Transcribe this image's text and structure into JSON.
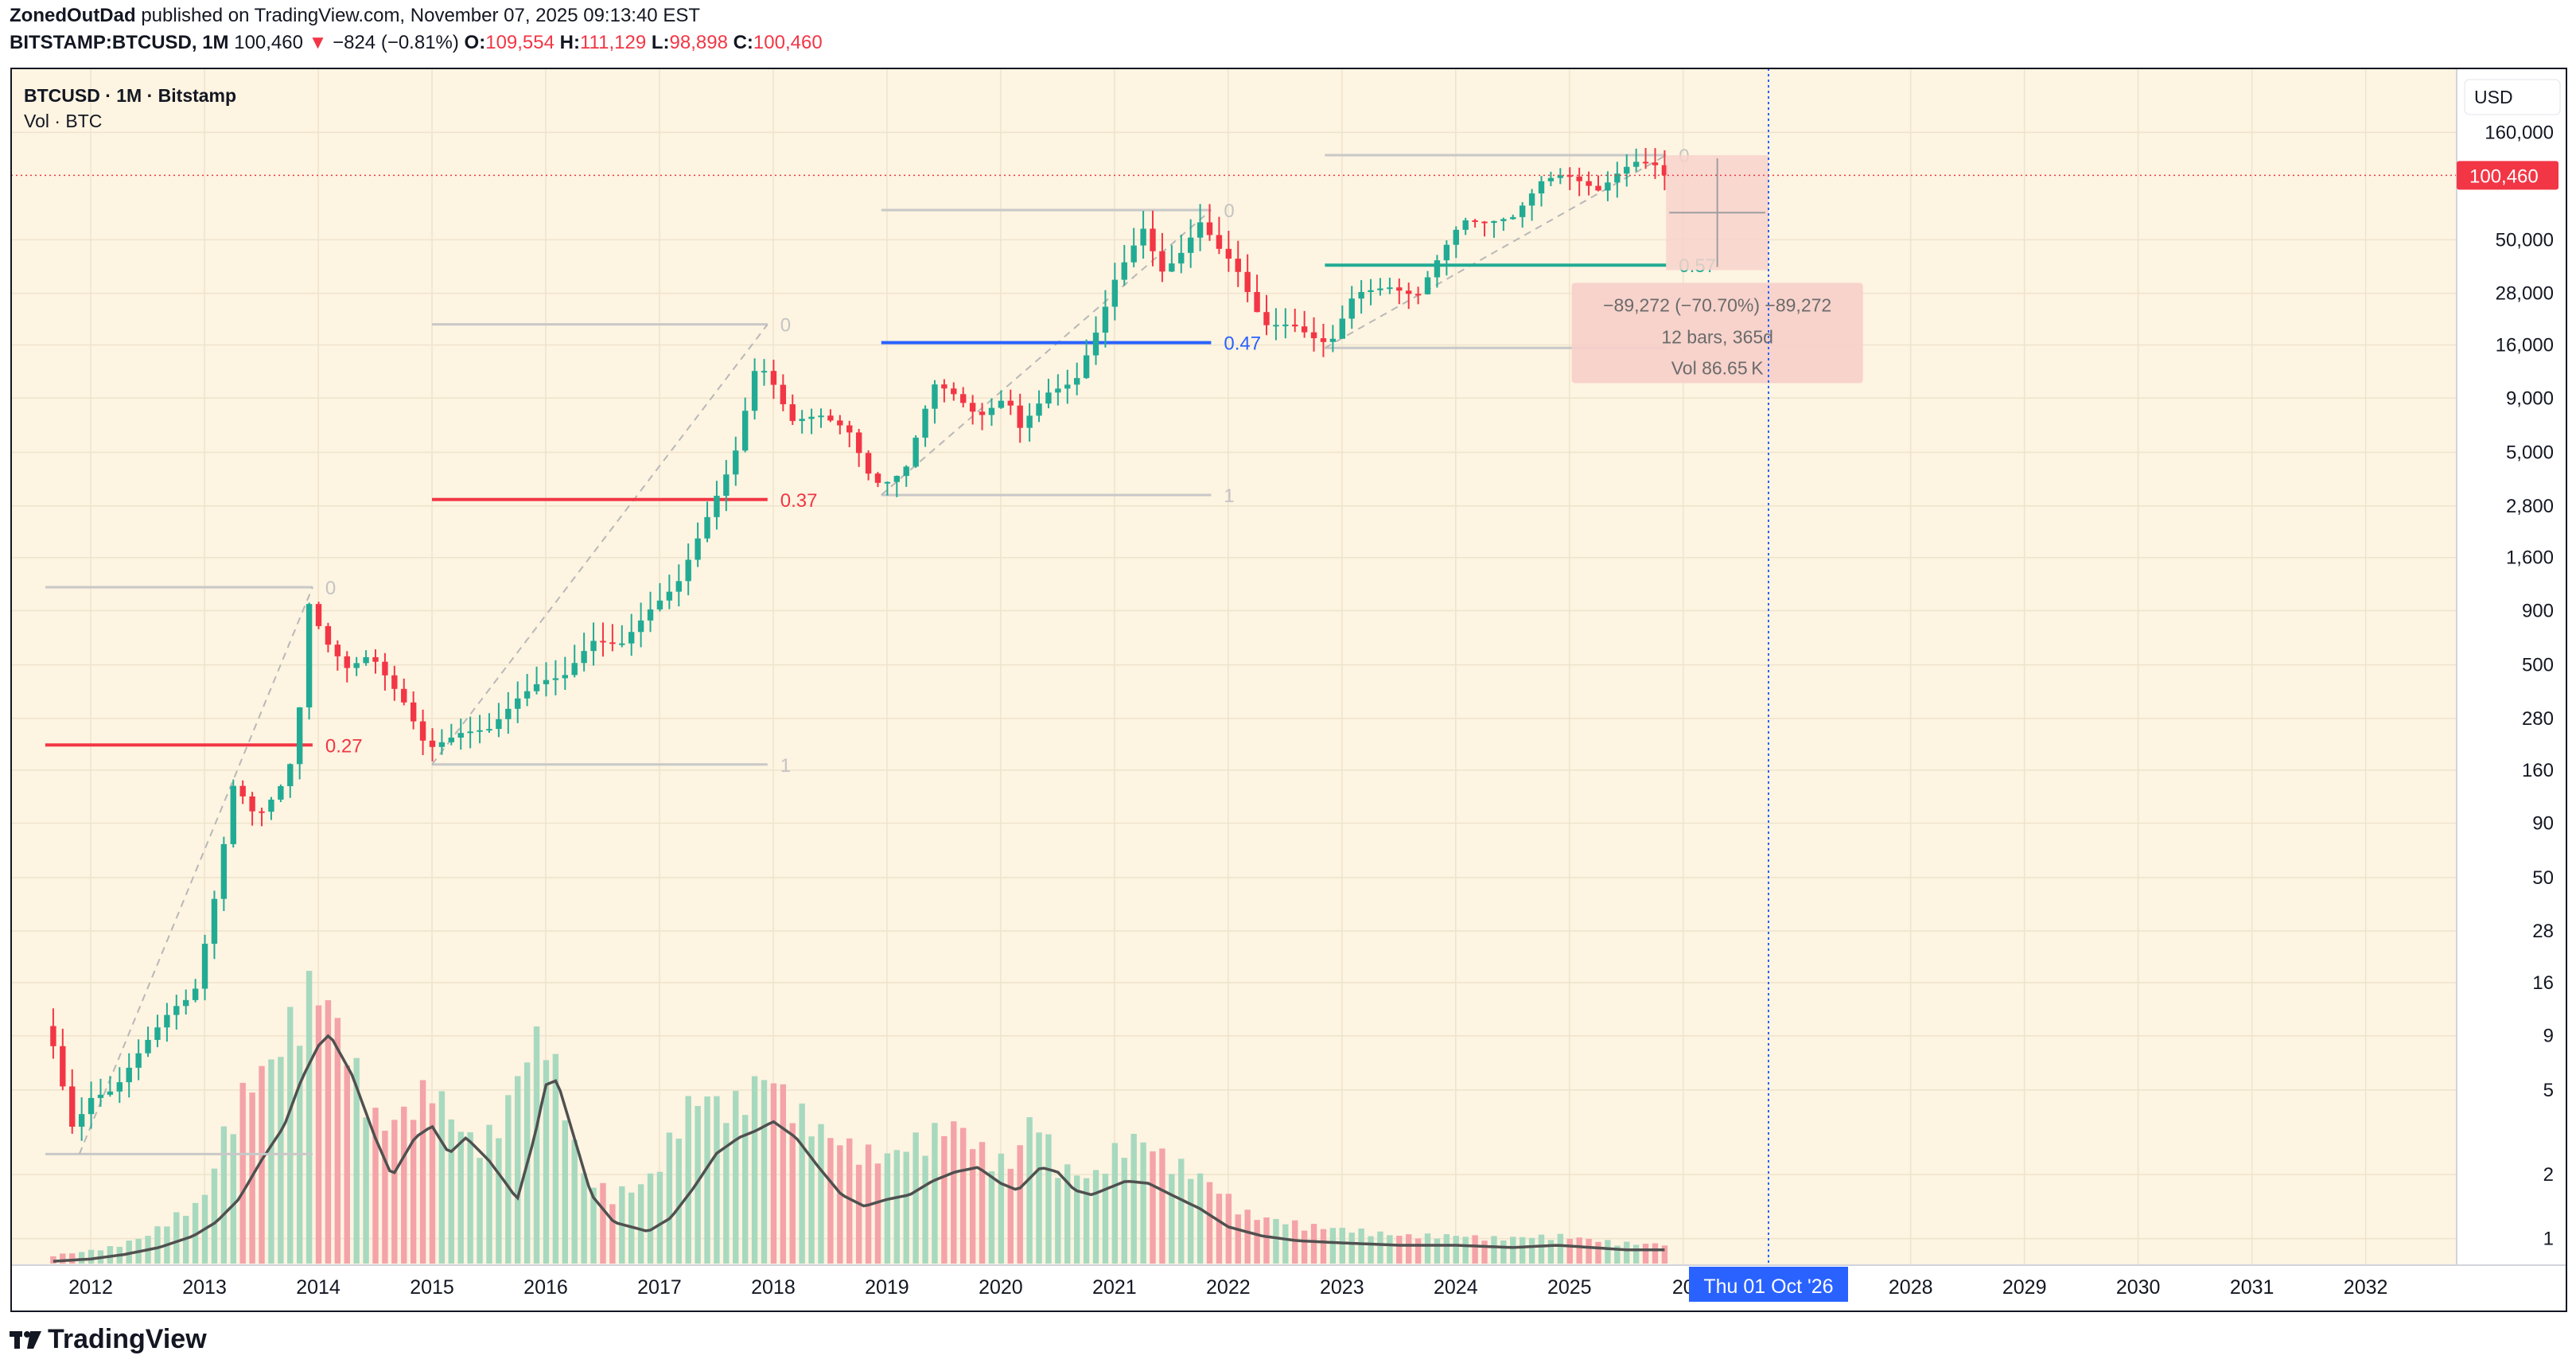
{
  "header": {
    "publisher": "ZonedOutDad",
    "published_text": "published on TradingView.com, November 07, 2025 09:13:40 EST",
    "symbol": "BITSTAMP:BTCUSD, 1M",
    "last": "100,460",
    "change": "−824 (−0.81%)",
    "o_label": "O:",
    "o_value": "109,554",
    "h_label": "H:",
    "h_value": "111,129",
    "l_label": "L:",
    "l_value": "98,898",
    "c_label": "C:",
    "c_value": "100,460"
  },
  "pane": {
    "title": "BTCUSD · 1M · Bitstamp",
    "vol_label": "Vol · BTC",
    "currency": "USD",
    "price_badge": "100,460"
  },
  "chart_data": {
    "type": "candlestick",
    "title": "BTCUSD · 1M · Bitstamp",
    "y_scale": "log",
    "ylim": [
      0.75,
      320000
    ],
    "y_ticks": [
      {
        "v": 160000,
        "t": "160,000"
      },
      {
        "v": 50000,
        "t": "50,000"
      },
      {
        "v": 28000,
        "t": "28,000"
      },
      {
        "v": 16000,
        "t": "16,000"
      },
      {
        "v": 9000,
        "t": "9,000"
      },
      {
        "v": 5000,
        "t": "5,000"
      },
      {
        "v": 2800,
        "t": "2,800"
      },
      {
        "v": 1600,
        "t": "1,600"
      },
      {
        "v": 900,
        "t": "900"
      },
      {
        "v": 500,
        "t": "500"
      },
      {
        "v": 280,
        "t": "280"
      },
      {
        "v": 160,
        "t": "160"
      },
      {
        "v": 90,
        "t": "90"
      },
      {
        "v": 50,
        "t": "50"
      },
      {
        "v": 28,
        "t": "28"
      },
      {
        "v": 16,
        "t": "16"
      },
      {
        "v": 9,
        "t": "9"
      },
      {
        "v": 5,
        "t": "5"
      },
      {
        "v": 2,
        "t": "2"
      },
      {
        "v": 1,
        "t": "1"
      }
    ],
    "x_range": [
      2011.3,
      2032.8
    ],
    "x_ticks": [
      {
        "v": 2012,
        "t": "2012"
      },
      {
        "v": 2013,
        "t": "2013"
      },
      {
        "v": 2014,
        "t": "2014"
      },
      {
        "v": 2015,
        "t": "2015"
      },
      {
        "v": 2016,
        "t": "2016"
      },
      {
        "v": 2017,
        "t": "2017"
      },
      {
        "v": 2018,
        "t": "2018"
      },
      {
        "v": 2019,
        "t": "2019"
      },
      {
        "v": 2020,
        "t": "2020"
      },
      {
        "v": 2021,
        "t": "2021"
      },
      {
        "v": 2022,
        "t": "2022"
      },
      {
        "v": 2023,
        "t": "2023"
      },
      {
        "v": 2024,
        "t": "2024"
      },
      {
        "v": 2025,
        "t": "2025"
      },
      {
        "v": 2026,
        "t": "20"
      },
      {
        "v": 2028,
        "t": "2028"
      },
      {
        "v": 2029,
        "t": "2029"
      },
      {
        "v": 2030,
        "t": "2030"
      },
      {
        "v": 2031,
        "t": "2031"
      },
      {
        "v": 2032,
        "t": "2032"
      }
    ],
    "crosshair": {
      "x": 2026.75,
      "label": "Thu 01 Oct '26"
    },
    "last_price": 100460,
    "candle_path": [
      [
        2011.67,
        10
      ],
      [
        2011.9,
        3
      ],
      [
        2012.0,
        4.5
      ],
      [
        2012.25,
        5
      ],
      [
        2012.5,
        8
      ],
      [
        2012.75,
        12
      ],
      [
        2012.95,
        14
      ],
      [
        2013.15,
        45
      ],
      [
        2013.3,
        140
      ],
      [
        2013.5,
        95
      ],
      [
        2013.7,
        130
      ],
      [
        2013.85,
        200
      ],
      [
        2013.95,
        1000
      ],
      [
        2014.1,
        650
      ],
      [
        2014.3,
        480
      ],
      [
        2014.5,
        560
      ],
      [
        2014.8,
        330
      ],
      [
        2015.0,
        200
      ],
      [
        2015.3,
        240
      ],
      [
        2015.55,
        250
      ],
      [
        2015.8,
        350
      ],
      [
        2016.0,
        420
      ],
      [
        2016.2,
        440
      ],
      [
        2016.45,
        650
      ],
      [
        2016.7,
        620
      ],
      [
        2016.95,
        900
      ],
      [
        2017.2,
        1200
      ],
      [
        2017.45,
        2400
      ],
      [
        2017.7,
        4800
      ],
      [
        2017.9,
        13500
      ],
      [
        2018.05,
        10300
      ],
      [
        2018.2,
        7000
      ],
      [
        2018.45,
        7500
      ],
      [
        2018.7,
        6400
      ],
      [
        2018.9,
        3750
      ],
      [
        2019.0,
        3500
      ],
      [
        2019.2,
        4100
      ],
      [
        2019.45,
        10500
      ],
      [
        2019.6,
        9700
      ],
      [
        2019.85,
        7300
      ],
      [
        2020.1,
        9200
      ],
      [
        2020.2,
        6400
      ],
      [
        2020.45,
        9500
      ],
      [
        2020.7,
        10800
      ],
      [
        2020.9,
        19500
      ],
      [
        2021.05,
        33000
      ],
      [
        2021.3,
        57000
      ],
      [
        2021.45,
        35000
      ],
      [
        2021.6,
        41000
      ],
      [
        2021.8,
        61000
      ],
      [
        2021.95,
        46000
      ],
      [
        2022.1,
        38000
      ],
      [
        2022.35,
        19800
      ],
      [
        2022.6,
        20000
      ],
      [
        2022.85,
        16500
      ],
      [
        2022.95,
        16600
      ],
      [
        2023.15,
        28000
      ],
      [
        2023.45,
        30000
      ],
      [
        2023.7,
        27000
      ],
      [
        2023.9,
        42000
      ],
      [
        2024.1,
        62000
      ],
      [
        2024.3,
        60000
      ],
      [
        2024.55,
        64000
      ],
      [
        2024.8,
        95000
      ],
      [
        2025.0,
        102000
      ],
      [
        2025.3,
        85000
      ],
      [
        2025.5,
        107000
      ],
      [
        2025.65,
        118000
      ],
      [
        2025.8,
        112000
      ],
      [
        2025.85,
        100460
      ]
    ],
    "volume_profile": [
      [
        2011.67,
        0.03
      ],
      [
        2011.9,
        0.04
      ],
      [
        2012.2,
        0.06
      ],
      [
        2012.5,
        0.1
      ],
      [
        2012.7,
        0.16
      ],
      [
        2012.9,
        0.2
      ],
      [
        2013.0,
        0.24
      ],
      [
        2013.2,
        0.5
      ],
      [
        2013.4,
        0.65
      ],
      [
        2013.6,
        0.72
      ],
      [
        2013.8,
        0.9
      ],
      [
        2013.95,
        1.0
      ],
      [
        2014.1,
        0.92
      ],
      [
        2014.3,
        0.72
      ],
      [
        2014.55,
        0.48
      ],
      [
        2014.8,
        0.55
      ],
      [
        2015.0,
        0.65
      ],
      [
        2015.2,
        0.5
      ],
      [
        2015.4,
        0.42
      ],
      [
        2015.6,
        0.5
      ],
      [
        2015.8,
        0.72
      ],
      [
        2016.0,
        0.85
      ],
      [
        2016.2,
        0.5
      ],
      [
        2016.35,
        0.3
      ],
      [
        2016.6,
        0.25
      ],
      [
        2016.85,
        0.28
      ],
      [
        2017.0,
        0.35
      ],
      [
        2017.2,
        0.55
      ],
      [
        2017.4,
        0.6
      ],
      [
        2017.6,
        0.55
      ],
      [
        2017.8,
        0.62
      ],
      [
        2017.95,
        0.68
      ],
      [
        2018.2,
        0.55
      ],
      [
        2018.5,
        0.45
      ],
      [
        2018.8,
        0.4
      ],
      [
        2019.0,
        0.38
      ],
      [
        2019.3,
        0.45
      ],
      [
        2019.6,
        0.5
      ],
      [
        2019.85,
        0.4
      ],
      [
        2020.1,
        0.35
      ],
      [
        2020.3,
        0.55
      ],
      [
        2020.5,
        0.35
      ],
      [
        2020.8,
        0.3
      ],
      [
        2021.0,
        0.4
      ],
      [
        2021.2,
        0.45
      ],
      [
        2021.45,
        0.38
      ],
      [
        2021.8,
        0.3
      ],
      [
        2022.2,
        0.17
      ],
      [
        2022.5,
        0.15
      ],
      [
        2022.8,
        0.13
      ],
      [
        2023.1,
        0.12
      ],
      [
        2023.5,
        0.1
      ],
      [
        2024.0,
        0.1
      ],
      [
        2024.4,
        0.09
      ],
      [
        2024.9,
        0.1
      ],
      [
        2025.3,
        0.08
      ],
      [
        2025.6,
        0.07
      ],
      [
        2025.85,
        0.07
      ]
    ],
    "volume_ma": [
      [
        2011.67,
        0.01
      ],
      [
        2012.0,
        0.02
      ],
      [
        2012.3,
        0.04
      ],
      [
        2012.6,
        0.07
      ],
      [
        2012.9,
        0.12
      ],
      [
        2013.1,
        0.18
      ],
      [
        2013.3,
        0.28
      ],
      [
        2013.5,
        0.45
      ],
      [
        2013.7,
        0.6
      ],
      [
        2013.85,
        0.8
      ],
      [
        2014.0,
        0.95
      ],
      [
        2014.1,
        1.0
      ],
      [
        2014.3,
        0.82
      ],
      [
        2014.5,
        0.55
      ],
      [
        2014.65,
        0.38
      ],
      [
        2014.85,
        0.55
      ],
      [
        2015.0,
        0.6
      ],
      [
        2015.15,
        0.48
      ],
      [
        2015.3,
        0.55
      ],
      [
        2015.5,
        0.45
      ],
      [
        2015.65,
        0.35
      ],
      [
        2015.75,
        0.28
      ],
      [
        2015.9,
        0.55
      ],
      [
        2016.0,
        0.78
      ],
      [
        2016.1,
        0.8
      ],
      [
        2016.25,
        0.55
      ],
      [
        2016.4,
        0.3
      ],
      [
        2016.6,
        0.18
      ],
      [
        2016.9,
        0.14
      ],
      [
        2017.1,
        0.2
      ],
      [
        2017.3,
        0.33
      ],
      [
        2017.5,
        0.48
      ],
      [
        2017.7,
        0.55
      ],
      [
        2017.85,
        0.58
      ],
      [
        2018.0,
        0.62
      ],
      [
        2018.2,
        0.55
      ],
      [
        2018.4,
        0.42
      ],
      [
        2018.6,
        0.3
      ],
      [
        2018.8,
        0.25
      ],
      [
        2019.0,
        0.28
      ],
      [
        2019.2,
        0.3
      ],
      [
        2019.4,
        0.36
      ],
      [
        2019.6,
        0.4
      ],
      [
        2019.8,
        0.42
      ],
      [
        2020.0,
        0.35
      ],
      [
        2020.15,
        0.32
      ],
      [
        2020.35,
        0.42
      ],
      [
        2020.5,
        0.4
      ],
      [
        2020.65,
        0.32
      ],
      [
        2020.8,
        0.3
      ],
      [
        2020.95,
        0.33
      ],
      [
        2021.1,
        0.36
      ],
      [
        2021.3,
        0.35
      ],
      [
        2021.5,
        0.3
      ],
      [
        2021.75,
        0.24
      ],
      [
        2022.0,
        0.16
      ],
      [
        2022.3,
        0.12
      ],
      [
        2022.6,
        0.1
      ],
      [
        2023.0,
        0.09
      ],
      [
        2023.5,
        0.08
      ],
      [
        2024.0,
        0.08
      ],
      [
        2024.5,
        0.07
      ],
      [
        2024.9,
        0.08
      ],
      [
        2025.2,
        0.07
      ],
      [
        2025.5,
        0.06
      ],
      [
        2025.85,
        0.06
      ]
    ],
    "fib_levels": [
      {
        "label": "0.27",
        "color": "#f23645",
        "value": 210,
        "x1": 2011.6,
        "x2": 2013.95
      },
      {
        "label": "0.37",
        "color": "#f23645",
        "value": 3000,
        "x1": 2015.0,
        "x2": 2017.95
      },
      {
        "label": "0.47",
        "color": "#2962ff",
        "value": 16400,
        "x1": 2018.95,
        "x2": 2021.85
      },
      {
        "label": "0.57",
        "color": "#22ab94",
        "value": 38000,
        "x1": 2022.85,
        "x2": 2025.85
      }
    ],
    "swing_lines": [
      {
        "value": 1160,
        "x1": 2011.6,
        "x2": 2013.95,
        "label": "0"
      },
      {
        "value": 2.5,
        "x1": 2011.6,
        "x2": 2013.95,
        "label": ""
      },
      {
        "value": 20000,
        "x1": 2015.0,
        "x2": 2017.95,
        "label": "0"
      },
      {
        "value": 170,
        "x1": 2015.0,
        "x2": 2017.95,
        "label": "1"
      },
      {
        "value": 69000,
        "x1": 2018.95,
        "x2": 2021.85,
        "label": "0"
      },
      {
        "value": 3150,
        "x1": 2018.95,
        "x2": 2021.85,
        "label": "1"
      },
      {
        "value": 125000,
        "x1": 2022.85,
        "x2": 2025.85,
        "label": "0"
      },
      {
        "value": 15500,
        "x1": 2022.85,
        "x2": 2025.85,
        "label": ""
      }
    ],
    "trend_lines": [
      [
        [
          2011.9,
          2.5
        ],
        [
          2013.95,
          1160
        ]
      ],
      [
        [
          2015.0,
          170
        ],
        [
          2017.95,
          20000
        ]
      ],
      [
        [
          2018.95,
          3150
        ],
        [
          2021.85,
          69000
        ]
      ],
      [
        [
          2022.85,
          15500
        ],
        [
          2025.85,
          125000
        ]
      ]
    ],
    "measure": {
      "x1": 2025.85,
      "x2": 2026.75,
      "top": 125000,
      "bottom": 36000,
      "line1": "−89,272 (−70.70%) −89,272",
      "line2": "12 bars, 365d",
      "line3": "Vol 86.65 K"
    },
    "colors": {
      "up": "#22ab94",
      "down": "#f23645",
      "vol_up": "#a7d9bf",
      "vol_down": "#f4a3a8",
      "background": "#fdf4e1",
      "grid": "#efe3cc",
      "ma": "#505050",
      "swing": "#c8c8c8",
      "crosshair": "#2962ff",
      "measure_fill": "#f8d2cc",
      "label_bg": "#2962ff",
      "price_bg": "#f23645"
    }
  }
}
